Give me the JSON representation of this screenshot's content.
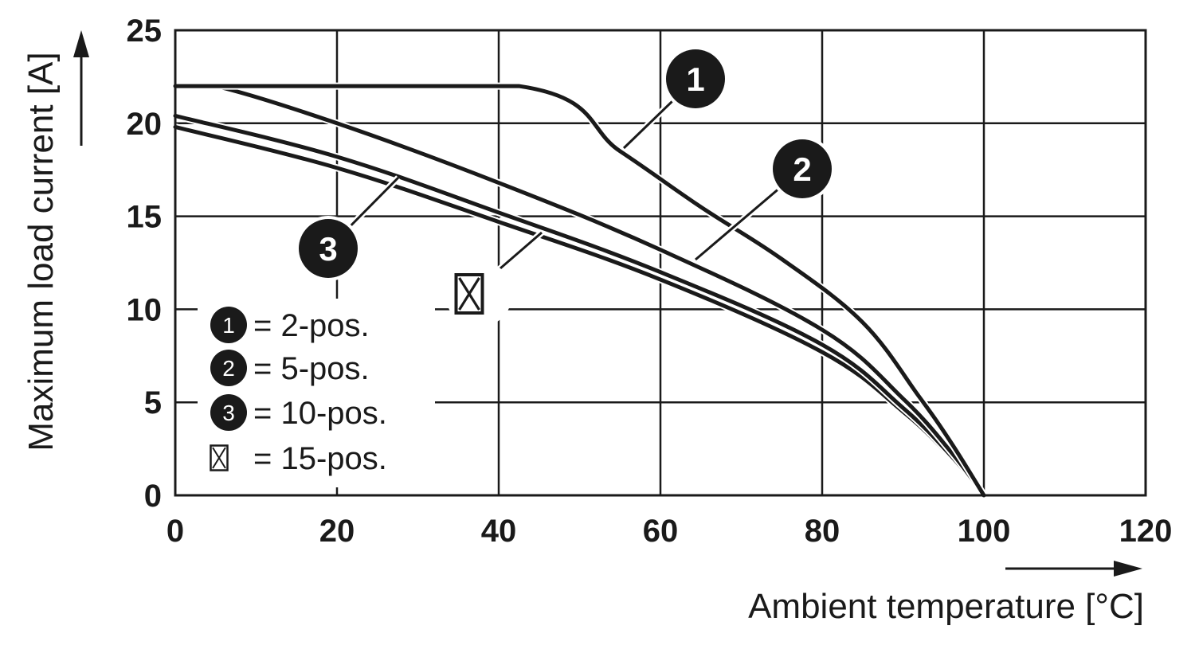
{
  "chart_data": {
    "type": "line",
    "xlabel": "Ambient temperature [°C]",
    "ylabel": "Maximum load current [A]",
    "xlim": [
      0,
      120
    ],
    "ylim": [
      0,
      25
    ],
    "x_ticks": [
      "0",
      "20",
      "40",
      "60",
      "80",
      "100",
      "120"
    ],
    "y_ticks": [
      "0",
      "5",
      "10",
      "15",
      "20",
      "25"
    ],
    "grid": true,
    "legend_position": "bottom-left",
    "series": [
      {
        "name": "2-pos.",
        "marker": "1",
        "x": [
          0,
          42.5,
          55,
          65,
          75,
          85,
          92,
          96,
          100
        ],
        "y": [
          22,
          22,
          18.5,
          15.5,
          12.7,
          9.3,
          5.3,
          2.8,
          0
        ]
      },
      {
        "name": "5-pos.",
        "marker": "2",
        "x": [
          0,
          5,
          20,
          40,
          60,
          80,
          90,
          96,
          100
        ],
        "y": [
          22,
          22,
          20,
          16.8,
          13.2,
          8.9,
          5.2,
          2.3,
          0
        ]
      },
      {
        "name": "10-pos.",
        "marker": "3",
        "x": [
          0,
          20,
          40,
          60,
          80,
          90,
          96,
          100
        ],
        "y": [
          20.4,
          18.2,
          15.2,
          12.0,
          8.1,
          4.7,
          2.1,
          0
        ]
      },
      {
        "name": "15-pos.",
        "marker": "box-x",
        "x": [
          0,
          20,
          40,
          60,
          80,
          90,
          96,
          100
        ],
        "y": [
          19.8,
          17.6,
          14.7,
          11.6,
          7.7,
          4.5,
          2.0,
          0
        ]
      }
    ],
    "legend": [
      {
        "marker": "1",
        "label": "= 2-pos."
      },
      {
        "marker": "2",
        "label": "= 5-pos."
      },
      {
        "marker": "3",
        "label": "= 10-pos."
      },
      {
        "marker": "box-x",
        "label": "= 15-pos."
      }
    ],
    "callouts": [
      {
        "marker": "1",
        "series": 0
      },
      {
        "marker": "2",
        "series": 1
      },
      {
        "marker": "3",
        "series": 2
      },
      {
        "marker": "box-x",
        "series": 3
      }
    ]
  }
}
